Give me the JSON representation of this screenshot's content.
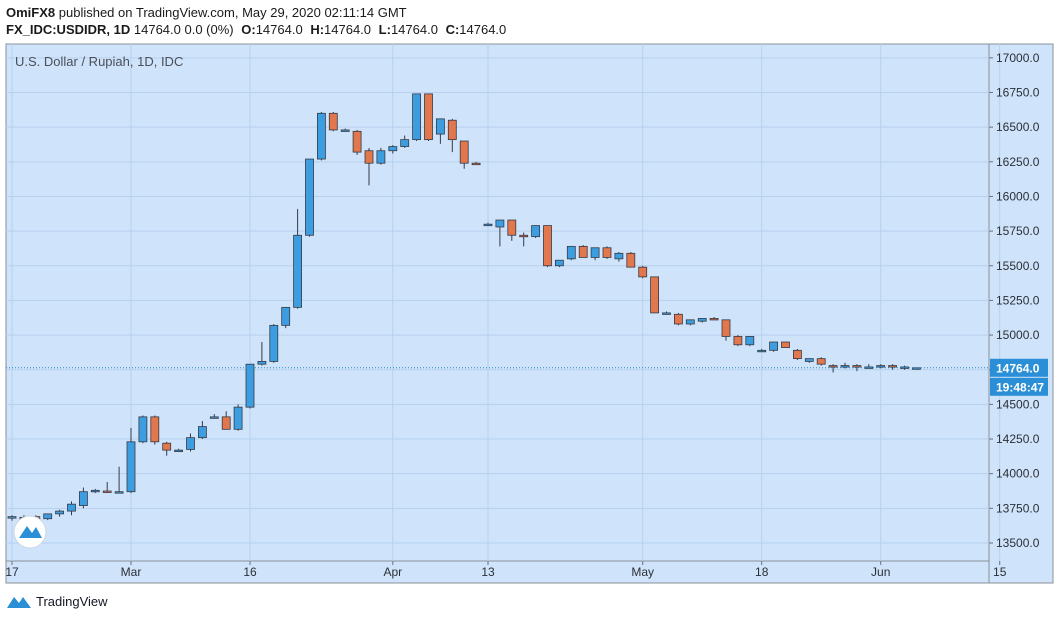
{
  "header": {
    "author": "OmiFX8",
    "published_text": "published on TradingView.com, May 29, 2020 02:11:14 GMT",
    "symbol": "FX_IDC:USDIDR, 1D",
    "price_change": "14764.0 0.0 (0%)",
    "ohlc": {
      "o_label": "O:",
      "o": "14764.0",
      "h_label": "H:",
      "h": "14764.0",
      "l_label": "L:",
      "l": "14764.0",
      "c_label": "C:",
      "c": "14764.0"
    }
  },
  "chart_title": "U.S. Dollar / Rupiah, 1D, IDC",
  "footer": {
    "brand": "TradingView"
  },
  "colors": {
    "background": "#cfe4fa",
    "up": "#3c9ee0",
    "down": "#e2764c",
    "wick": "#363a45",
    "grid": "#b6d0ee",
    "price_line": "#2a88c8",
    "price_label": "#2a8fd6"
  },
  "chart_data": {
    "type": "candlestick",
    "title": "U.S. Dollar / Rupiah, 1D, IDC",
    "ylim": [
      13370,
      17100
    ],
    "y_ticks": [
      13500,
      13750,
      14000,
      14250,
      14500,
      14750,
      15000,
      15250,
      15500,
      15750,
      16000,
      16250,
      16500,
      16750,
      17000
    ],
    "x_ticks": [
      {
        "label": "17",
        "index": 0
      },
      {
        "label": "Mar",
        "index": 10
      },
      {
        "label": "16",
        "index": 20
      },
      {
        "label": "Apr",
        "index": 32
      },
      {
        "label": "13",
        "index": 40
      },
      {
        "label": "May",
        "index": 53
      },
      {
        "label": "18",
        "index": 63
      },
      {
        "label": "Jun",
        "index": 73
      },
      {
        "label": "15",
        "index": 83
      }
    ],
    "last_price": "14764.0",
    "last_price_value": 14764,
    "countdown": "19:48:47",
    "candles": [
      {
        "o": 13680,
        "h": 13700,
        "l": 13660,
        "c": 13690
      },
      {
        "o": 13685,
        "h": 13700,
        "l": 13650,
        "c": 13680
      },
      {
        "o": 13690,
        "h": 13700,
        "l": 13670,
        "c": 13670
      },
      {
        "o": 13675,
        "h": 13710,
        "l": 13665,
        "c": 13710
      },
      {
        "o": 13710,
        "h": 13740,
        "l": 13690,
        "c": 13730
      },
      {
        "o": 13730,
        "h": 13800,
        "l": 13700,
        "c": 13780
      },
      {
        "o": 13770,
        "h": 13900,
        "l": 13750,
        "c": 13870
      },
      {
        "o": 13870,
        "h": 13890,
        "l": 13860,
        "c": 13880
      },
      {
        "o": 13875,
        "h": 13940,
        "l": 13860,
        "c": 13870
      },
      {
        "o": 13870,
        "h": 14050,
        "l": 13860,
        "c": 13870
      },
      {
        "o": 13870,
        "h": 14330,
        "l": 13860,
        "c": 14230
      },
      {
        "o": 14230,
        "h": 14420,
        "l": 14220,
        "c": 14410
      },
      {
        "o": 14410,
        "h": 14420,
        "l": 14210,
        "c": 14230
      },
      {
        "o": 14220,
        "h": 14230,
        "l": 14130,
        "c": 14170
      },
      {
        "o": 14170,
        "h": 14180,
        "l": 14160,
        "c": 14170
      },
      {
        "o": 14175,
        "h": 14290,
        "l": 14160,
        "c": 14260
      },
      {
        "o": 14260,
        "h": 14380,
        "l": 14250,
        "c": 14340
      },
      {
        "o": 14410,
        "h": 14430,
        "l": 14400,
        "c": 14410
      },
      {
        "o": 14410,
        "h": 14450,
        "l": 14320,
        "c": 14320
      },
      {
        "o": 14320,
        "h": 14500,
        "l": 14310,
        "c": 14480
      },
      {
        "o": 14480,
        "h": 14790,
        "l": 14470,
        "c": 14790
      },
      {
        "o": 14790,
        "h": 14950,
        "l": 14780,
        "c": 14810
      },
      {
        "o": 14810,
        "h": 15080,
        "l": 14800,
        "c": 15070
      },
      {
        "o": 15070,
        "h": 15200,
        "l": 15050,
        "c": 15200
      },
      {
        "o": 15200,
        "h": 15910,
        "l": 15190,
        "c": 15720
      },
      {
        "o": 15720,
        "h": 16270,
        "l": 15710,
        "c": 16270
      },
      {
        "o": 16270,
        "h": 16610,
        "l": 16260,
        "c": 16600
      },
      {
        "o": 16600,
        "h": 16610,
        "l": 16470,
        "c": 16480
      },
      {
        "o": 16480,
        "h": 16490,
        "l": 16470,
        "c": 16480
      },
      {
        "o": 16470,
        "h": 16480,
        "l": 16300,
        "c": 16320
      },
      {
        "o": 16330,
        "h": 16350,
        "l": 16080,
        "c": 16240
      },
      {
        "o": 16240,
        "h": 16350,
        "l": 16230,
        "c": 16330
      },
      {
        "o": 16330,
        "h": 16370,
        "l": 16310,
        "c": 16360
      },
      {
        "o": 16360,
        "h": 16440,
        "l": 16350,
        "c": 16410
      },
      {
        "o": 16410,
        "h": 16740,
        "l": 16400,
        "c": 16740
      },
      {
        "o": 16740,
        "h": 16740,
        "l": 16400,
        "c": 16410
      },
      {
        "o": 16450,
        "h": 16560,
        "l": 16380,
        "c": 16560
      },
      {
        "o": 16550,
        "h": 16560,
        "l": 16320,
        "c": 16410
      },
      {
        "o": 16400,
        "h": 16400,
        "l": 16200,
        "c": 16240
      },
      {
        "o": 16240,
        "h": 16250,
        "l": 16230,
        "c": 16230
      },
      {
        "o": 15800,
        "h": 15810,
        "l": 15790,
        "c": 15800
      },
      {
        "o": 15780,
        "h": 15830,
        "l": 15640,
        "c": 15830
      },
      {
        "o": 15830,
        "h": 15830,
        "l": 15680,
        "c": 15720
      },
      {
        "o": 15720,
        "h": 15740,
        "l": 15640,
        "c": 15710
      },
      {
        "o": 15710,
        "h": 15790,
        "l": 15700,
        "c": 15790
      },
      {
        "o": 15790,
        "h": 15790,
        "l": 15490,
        "c": 15500
      },
      {
        "o": 15500,
        "h": 15540,
        "l": 15490,
        "c": 15540
      },
      {
        "o": 15550,
        "h": 15640,
        "l": 15540,
        "c": 15640
      },
      {
        "o": 15640,
        "h": 15650,
        "l": 15560,
        "c": 15560
      },
      {
        "o": 15560,
        "h": 15630,
        "l": 15540,
        "c": 15630
      },
      {
        "o": 15630,
        "h": 15640,
        "l": 15550,
        "c": 15560
      },
      {
        "o": 15550,
        "h": 15600,
        "l": 15530,
        "c": 15590
      },
      {
        "o": 15590,
        "h": 15600,
        "l": 15490,
        "c": 15490
      },
      {
        "o": 15490,
        "h": 15500,
        "l": 15410,
        "c": 15420
      },
      {
        "o": 15420,
        "h": 15420,
        "l": 15160,
        "c": 15160
      },
      {
        "o": 15160,
        "h": 15170,
        "l": 15150,
        "c": 15160
      },
      {
        "o": 15150,
        "h": 15160,
        "l": 15070,
        "c": 15080
      },
      {
        "o": 15080,
        "h": 15110,
        "l": 15070,
        "c": 15110
      },
      {
        "o": 15100,
        "h": 15120,
        "l": 15090,
        "c": 15120
      },
      {
        "o": 15120,
        "h": 15130,
        "l": 15110,
        "c": 15110
      },
      {
        "o": 15110,
        "h": 15110,
        "l": 14960,
        "c": 14990
      },
      {
        "o": 14990,
        "h": 15000,
        "l": 14920,
        "c": 14930
      },
      {
        "o": 14930,
        "h": 14990,
        "l": 14920,
        "c": 14990
      },
      {
        "o": 14890,
        "h": 14900,
        "l": 14880,
        "c": 14890
      },
      {
        "o": 14890,
        "h": 14950,
        "l": 14880,
        "c": 14950
      },
      {
        "o": 14950,
        "h": 14950,
        "l": 14910,
        "c": 14910
      },
      {
        "o": 14890,
        "h": 14900,
        "l": 14820,
        "c": 14830
      },
      {
        "o": 14810,
        "h": 14830,
        "l": 14800,
        "c": 14830
      },
      {
        "o": 14830,
        "h": 14840,
        "l": 14780,
        "c": 14790
      },
      {
        "o": 14780,
        "h": 14790,
        "l": 14730,
        "c": 14770
      },
      {
        "o": 14780,
        "h": 14800,
        "l": 14760,
        "c": 14780
      },
      {
        "o": 14780,
        "h": 14790,
        "l": 14740,
        "c": 14770
      },
      {
        "o": 14770,
        "h": 14790,
        "l": 14760,
        "c": 14770
      },
      {
        "o": 14770,
        "h": 14790,
        "l": 14760,
        "c": 14780
      },
      {
        "o": 14780,
        "h": 14790,
        "l": 14750,
        "c": 14770
      },
      {
        "o": 14760,
        "h": 14780,
        "l": 14750,
        "c": 14770
      },
      {
        "o": 14764,
        "h": 14764,
        "l": 14764,
        "c": 14764
      }
    ]
  }
}
